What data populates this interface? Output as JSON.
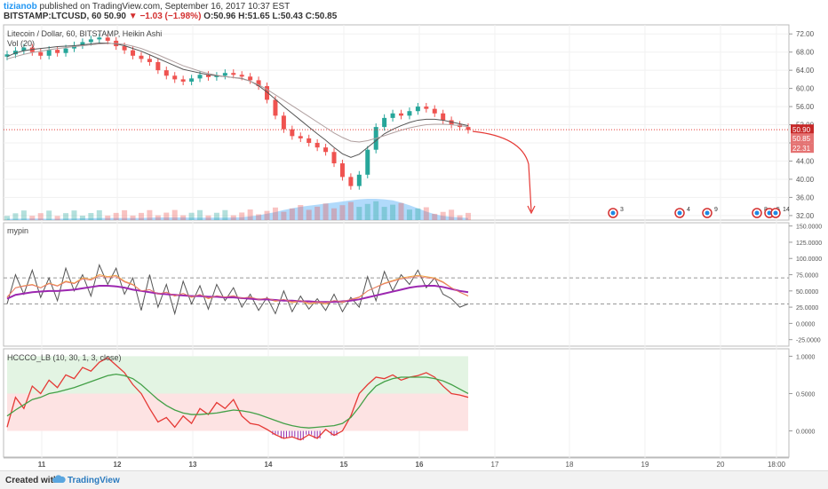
{
  "header": {
    "author": "tizianob",
    "published": " published on TradingView.com, September 16, 2017 10:37 EST",
    "symbol_line": "BITSTAMP:LTCUSD, 60 50.90",
    "change": "−1.03 (−1.98%)",
    "ohlc": "O:50.96 H:51.65 L:50.43 C:50.85"
  },
  "pane_labels": {
    "main_title": "Litecoin / Dollar, 60, BITSTAMP, Heikin Ashi",
    "vol": "Vol (20)",
    "osc1": "mypin",
    "osc2": "HCCCO_LB (10, 30, 1, 3, close)"
  },
  "price_tags": {
    "last": "50.90",
    "close": "50.85",
    "vol": "22.31"
  },
  "footer": {
    "created_with": "Created with",
    "brand": "TradingView"
  },
  "event_labels": [
    "3",
    "4",
    "9",
    "8",
    "5",
    "14"
  ],
  "colors": {
    "up": "#26a69a",
    "down": "#ef5350",
    "ma_dark": "#555555",
    "ma_light": "#b0a0a0",
    "volume_area": "#90caf9",
    "osc_purple": "#9c27b0",
    "hc_red": "#e53935",
    "hc_green": "#43a047",
    "annot": "#e53935"
  },
  "chart_data": [
    {
      "type": "candlestick",
      "title": "Litecoin / Dollar, 60, BITSTAMP, Heikin Ashi",
      "x_ticks": [
        "11",
        "12",
        "13",
        "14",
        "15",
        "16",
        "17",
        "18",
        "19",
        "20",
        "18:00"
      ],
      "y_ticks": [
        72.0,
        68.0,
        64.0,
        60.0,
        56.0,
        52.0,
        48.0,
        44.0,
        40.0,
        36.0,
        32.0
      ],
      "ylim": [
        31,
        74
      ],
      "close_series": [
        67.5,
        68.3,
        69.0,
        68.0,
        67.2,
        68.5,
        67.8,
        68.8,
        69.5,
        70.2,
        70.8,
        71.2,
        70.5,
        69.3,
        68.4,
        67.2,
        66.5,
        65.8,
        64.0,
        62.8,
        62.0,
        61.5,
        62.2,
        63.0,
        62.5,
        62.8,
        63.4,
        63.0,
        62.6,
        61.8,
        60.5,
        57.5,
        54.0,
        51.0,
        49.5,
        49.0,
        48.0,
        47.0,
        46.0,
        43.5,
        40.5,
        38.5,
        41.0,
        46.5,
        51.5,
        53.5,
        54.5,
        54.0,
        55.0,
        56.0,
        55.5,
        54.5,
        53.0,
        52.0,
        51.5,
        50.85
      ],
      "moving_averages": [
        {
          "name": "ma_fast",
          "values": [
            67.0,
            67.8,
            68.3,
            68.6,
            68.8,
            69.0,
            69.2,
            69.3,
            69.4,
            69.6,
            69.8,
            70.0,
            70.0,
            69.8,
            69.4,
            68.8,
            68.2,
            67.4,
            66.6,
            65.8,
            65.0,
            64.2,
            63.8,
            63.4,
            63.0,
            62.8,
            62.6,
            62.4,
            62.2,
            61.6,
            60.6,
            59.2,
            57.6,
            56.0,
            54.5,
            53.0,
            51.5,
            50.0,
            48.6,
            47.0,
            45.6,
            44.8,
            45.5,
            47.0,
            48.5,
            50.0,
            51.0,
            51.8,
            52.5,
            53.0,
            53.2,
            53.2,
            53.0,
            52.6,
            52.2,
            51.8
          ]
        },
        {
          "name": "ma_slow",
          "values": [
            66.5,
            67.0,
            67.5,
            67.9,
            68.2,
            68.5,
            68.8,
            69.0,
            69.2,
            69.4,
            69.6,
            69.8,
            69.9,
            69.9,
            69.7,
            69.3,
            68.8,
            68.1,
            67.4,
            66.6,
            65.8,
            65.0,
            64.4,
            63.8,
            63.3,
            62.9,
            62.6,
            62.4,
            62.1,
            61.6,
            60.8,
            59.8,
            58.6,
            57.4,
            56.2,
            55.0,
            53.8,
            52.6,
            51.4,
            50.2,
            49.2,
            48.4,
            48.2,
            48.5,
            49.0,
            49.6,
            50.2,
            50.8,
            51.3,
            51.7,
            52.0,
            52.1,
            52.1,
            52.0,
            51.8,
            51.6
          ]
        }
      ],
      "volume_area": [
        0.05,
        0.05,
        0.06,
        0.06,
        0.06,
        0.05,
        0.05,
        0.06,
        0.06,
        0.07,
        0.07,
        0.08,
        0.08,
        0.08,
        0.08,
        0.08,
        0.08,
        0.09,
        0.1,
        0.1,
        0.1,
        0.1,
        0.09,
        0.09,
        0.09,
        0.09,
        0.09,
        0.1,
        0.11,
        0.14,
        0.18,
        0.24,
        0.3,
        0.38,
        0.44,
        0.5,
        0.54,
        0.58,
        0.62,
        0.66,
        0.7,
        0.74,
        0.78,
        0.8,
        0.8,
        0.78,
        0.74,
        0.66,
        0.56,
        0.44,
        0.32,
        0.22,
        0.16,
        0.12,
        0.1,
        0.08
      ],
      "last_price": 50.9
    },
    {
      "type": "line",
      "name": "mypin",
      "y_ticks": [
        150,
        125,
        100,
        75,
        50,
        25,
        0,
        -25
      ],
      "ylim": [
        -35,
        155
      ],
      "bands": [
        70,
        30
      ],
      "series": [
        {
          "name": "osc_thin",
          "values": [
            30,
            75,
            45,
            82,
            40,
            70,
            35,
            85,
            50,
            75,
            42,
            90,
            60,
            85,
            45,
            70,
            20,
            75,
            25,
            60,
            15,
            65,
            30,
            58,
            22,
            60,
            35,
            55,
            25,
            45,
            20,
            40,
            15,
            50,
            18,
            42,
            22,
            38,
            20,
            45,
            18,
            40,
            25,
            72,
            35,
            80,
            50,
            75,
            60,
            82,
            55,
            70,
            45,
            38,
            25,
            30
          ]
        },
        {
          "name": "osc_orange",
          "values": [
            40,
            55,
            58,
            60,
            55,
            62,
            58,
            65,
            62,
            70,
            68,
            75,
            72,
            74,
            65,
            60,
            50,
            52,
            45,
            48,
            42,
            46,
            40,
            44,
            38,
            42,
            40,
            42,
            38,
            40,
            36,
            38,
            34,
            36,
            32,
            34,
            30,
            32,
            30,
            34,
            32,
            36,
            40,
            50,
            56,
            62,
            66,
            70,
            72,
            74,
            72,
            70,
            64,
            55,
            48,
            42
          ]
        },
        {
          "name": "osc_purple",
          "values": [
            38,
            44,
            46,
            48,
            49,
            50,
            50,
            51,
            52,
            54,
            56,
            58,
            58,
            57,
            55,
            52,
            50,
            48,
            46,
            45,
            44,
            43,
            42,
            42,
            41,
            41,
            40,
            40,
            39,
            38,
            37,
            37,
            36,
            35,
            35,
            34,
            34,
            33,
            33,
            33,
            34,
            35,
            37,
            40,
            43,
            46,
            49,
            52,
            55,
            57,
            58,
            58,
            56,
            53,
            50,
            48
          ]
        }
      ]
    },
    {
      "type": "line",
      "name": "HCCCO_LB",
      "y_ticks": [
        1.0,
        0.5,
        0.0
      ],
      "ylim": [
        -0.35,
        1.1
      ],
      "series": [
        {
          "name": "hc_red",
          "values": [
            0.05,
            0.45,
            0.3,
            0.6,
            0.5,
            0.68,
            0.58,
            0.75,
            0.7,
            0.85,
            0.8,
            0.92,
            0.98,
            0.88,
            0.78,
            0.62,
            0.5,
            0.3,
            0.12,
            0.18,
            0.05,
            0.2,
            0.1,
            0.3,
            0.22,
            0.38,
            0.3,
            0.42,
            0.2,
            0.1,
            0.08,
            0.02,
            -0.05,
            -0.1,
            -0.08,
            -0.12,
            -0.05,
            -0.1,
            0.02,
            -0.06,
            0.0,
            0.2,
            0.5,
            0.62,
            0.72,
            0.7,
            0.75,
            0.68,
            0.72,
            0.74,
            0.78,
            0.72,
            0.6,
            0.5,
            0.48,
            0.45
          ]
        },
        {
          "name": "hc_green",
          "values": [
            0.2,
            0.28,
            0.35,
            0.42,
            0.45,
            0.5,
            0.52,
            0.55,
            0.58,
            0.62,
            0.66,
            0.7,
            0.74,
            0.76,
            0.74,
            0.7,
            0.62,
            0.52,
            0.42,
            0.34,
            0.28,
            0.24,
            0.22,
            0.22,
            0.23,
            0.24,
            0.26,
            0.28,
            0.27,
            0.25,
            0.22,
            0.18,
            0.14,
            0.1,
            0.07,
            0.05,
            0.04,
            0.05,
            0.06,
            0.07,
            0.1,
            0.18,
            0.32,
            0.48,
            0.6,
            0.66,
            0.7,
            0.72,
            0.72,
            0.72,
            0.72,
            0.7,
            0.67,
            0.62,
            0.56,
            0.5
          ]
        }
      ]
    }
  ]
}
